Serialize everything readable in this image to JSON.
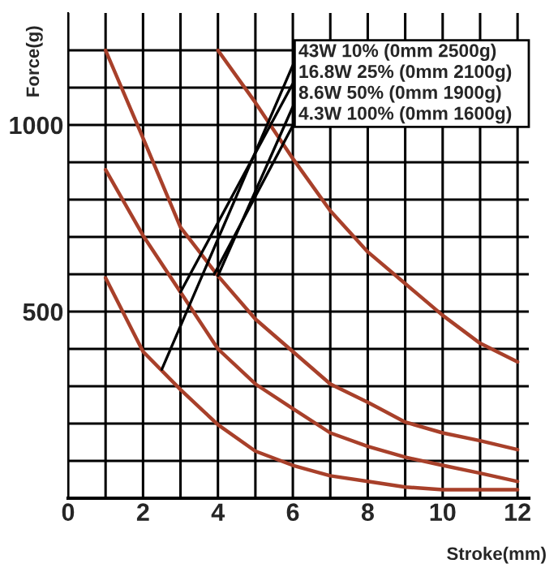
{
  "chart_data": {
    "type": "line",
    "xlabel": "Stroke(mm)",
    "ylabel": "Force(g)",
    "x": [
      1,
      2,
      3,
      4,
      5,
      6,
      7,
      8,
      9,
      10,
      11,
      12
    ],
    "series": [
      {
        "color": "#a8402a",
        "values": [
          null,
          null,
          null,
          1200,
          1060,
          910,
          770,
          660,
          575,
          490,
          415,
          365
        ]
      },
      {
        "color": "#a8402a",
        "values": [
          1200,
          965,
          726,
          596,
          480,
          393,
          306,
          257,
          204,
          175,
          154,
          130
        ]
      },
      {
        "color": "#a8402a",
        "values": [
          880,
          704,
          552,
          400,
          306,
          240,
          175,
          139,
          110,
          88,
          67,
          45
        ]
      },
      {
        "color": "#a8402a",
        "values": [
          590,
          393,
          291,
          197,
          126,
          88,
          60,
          45,
          30,
          23,
          23,
          23
        ]
      }
    ],
    "xlim": [
      0,
      12.3
    ],
    "ylim": [
      0,
      1300
    ],
    "xticks": [
      0,
      {
        "value": 1,
        "label": null
      },
      2,
      {
        "value": 3,
        "label": null
      },
      4,
      {
        "value": 5,
        "label": null
      },
      6,
      {
        "value": 7,
        "label": null
      },
      8,
      {
        "value": 9,
        "label": null
      },
      10,
      {
        "value": 11,
        "label": null
      },
      12
    ],
    "yticks": [
      {
        "value": 100,
        "label": null
      },
      {
        "value": 200,
        "label": null
      },
      {
        "value": 300,
        "label": null
      },
      {
        "value": 400,
        "label": null
      },
      500,
      {
        "value": 600,
        "label": null
      },
      {
        "value": 700,
        "label": null
      },
      {
        "value": 800,
        "label": null
      },
      {
        "value": 900,
        "label": null
      },
      1000,
      {
        "value": 1100,
        "label": null
      },
      {
        "value": 1200,
        "label": null
      }
    ],
    "grid": true,
    "legend": false,
    "marker": "none",
    "line_style": "solid",
    "annotations": [
      {
        "text": "43W 10% (0mm 2500g)",
        "x": 2.5,
        "y": 345
      },
      {
        "text": "16.8W 25% (0mm 2100g)",
        "x": 3,
        "y": 552
      },
      {
        "text": "8.6W 50% (0mm 1900g)",
        "x": 4,
        "y": 596
      },
      {
        "text": "4.3W 100% (0mm 1600g)",
        "x": 3.9,
        "y": 600
      }
    ]
  }
}
